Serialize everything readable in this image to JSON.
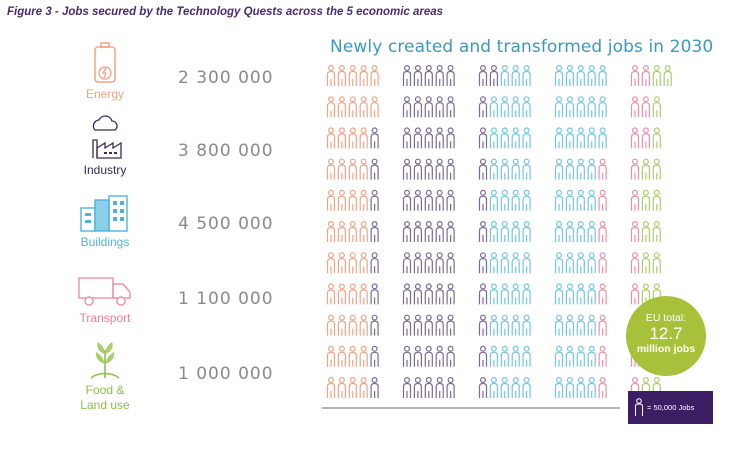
{
  "figure_title": "Figure 3 - Jobs secured by the Technology Quests across the 5 economic areas",
  "chart_title": "Newly created and transformed jobs in 2030",
  "sectors": [
    {
      "name": "Energy",
      "value_label": "2 300 000",
      "color": "#f0a386",
      "icon": "battery-icon"
    },
    {
      "name": "Industry",
      "value_label": "3 800 000",
      "color": "#7c6a92",
      "icon": "factory-icon"
    },
    {
      "name": "Buildings",
      "value_label": "4 500 000",
      "color": "#74c5e0",
      "icon": "buildings-icon"
    },
    {
      "name": "Transport",
      "value_label": "1 100 000",
      "color": "#ef8fa4",
      "icon": "truck-icon"
    },
    {
      "name": "Food &\nLand use",
      "value_label": "1 000 000",
      "color": "#a9cf6c",
      "icon": "wheat-icon"
    }
  ],
  "eu_total": {
    "line1": "EU total:",
    "value": "12.7",
    "line3": "million jobs"
  },
  "legend": {
    "text": "= 50,000 Jobs",
    "icon": "person-icon"
  },
  "chart_data": {
    "type": "pictogram",
    "title": "Newly created and transformed jobs in 2030",
    "unit_per_icon": 50000,
    "categories": [
      "Energy",
      "Industry",
      "Buildings",
      "Transport",
      "Food & Land use"
    ],
    "values": [
      2300000,
      3800000,
      4500000,
      1100000,
      1000000
    ],
    "icon_counts": [
      46,
      76,
      90,
      22,
      20
    ],
    "colors": [
      "#f0a386",
      "#7c6a92",
      "#74c5e0",
      "#ef8fa4",
      "#a9cf6c"
    ],
    "total": 12700000
  }
}
